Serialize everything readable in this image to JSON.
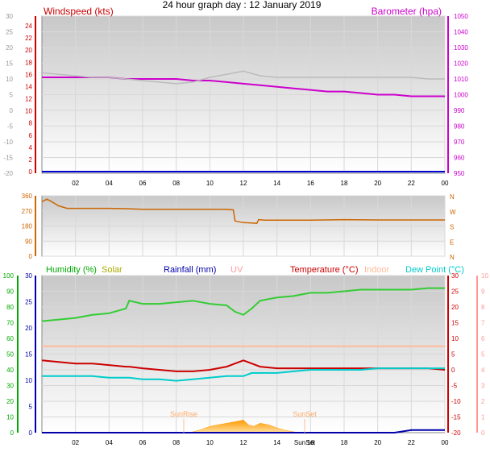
{
  "title": "24 hour graph day : 12 January 2019",
  "panels": {
    "top": {
      "left_label": "Windspeed (kts)",
      "right_label": "Barometer (hpa)",
      "left_inner_ticks": [
        "24",
        "22",
        "20",
        "18",
        "16",
        "14",
        "12",
        "10",
        "8",
        "6",
        "4",
        "2",
        "0"
      ],
      "left_outer_ticks": [
        "30",
        "25",
        "20",
        "15",
        "10",
        "5",
        "0",
        "-5",
        "-10",
        "-15",
        "-20"
      ],
      "right_ticks": [
        "1050",
        "1040",
        "1030",
        "1020",
        "1010",
        "1000",
        "990",
        "980",
        "970",
        "960",
        "950"
      ],
      "x_ticks": [
        "02",
        "04",
        "06",
        "08",
        "10",
        "12",
        "14",
        "16",
        "18",
        "20",
        "22",
        "00"
      ]
    },
    "middle": {
      "left_ticks": [
        "360",
        "270",
        "180",
        "90",
        "0"
      ],
      "right_ticks": [
        "N",
        "W",
        "S",
        "E",
        "N"
      ]
    },
    "bottom": {
      "header": {
        "humidity": "Humidity (%)",
        "solar": "Solar",
        "rainfall": "Rainfall (mm)",
        "uv": "UV",
        "temperature": "Temperature (°C)",
        "indoor": "Indoor",
        "dewpoint": "Dew Point (°C)"
      },
      "far_left_ticks": [
        "100",
        "90",
        "80",
        "70",
        "60",
        "50",
        "40",
        "30",
        "20",
        "10",
        "0"
      ],
      "inner_left_ticks": [
        "30",
        "25",
        "20",
        "15",
        "10",
        "5",
        "0"
      ],
      "inner_right_ticks": [
        "30",
        "25",
        "20",
        "15",
        "10",
        "5",
        "0",
        "-5",
        "-10",
        "-15",
        "-20"
      ],
      "far_right_ticks": [
        "10",
        "9",
        "8",
        "7",
        "6",
        "5",
        "4",
        "3",
        "2",
        "1",
        "0"
      ],
      "x_ticks": [
        "02",
        "04",
        "06",
        "08",
        "10",
        "12",
        "14",
        "16",
        "18",
        "20",
        "22",
        "00"
      ],
      "sunrise_label": "SunRise",
      "sunset_label": "SunSet",
      "sunset_axis_label": "SunSet"
    }
  },
  "colors": {
    "wind": "#cc0000",
    "barometer": "#cc00cc",
    "gust_line": "#bbbbbb",
    "direction": "#cc6600",
    "humidity": "#00aa00",
    "humidity_line": "#33cc33",
    "solar": "#aaaa00",
    "rainfall": "#0000aa",
    "uv": "#ff9999",
    "temperature": "#cc0000",
    "indoor": "#ffbb99",
    "dewpoint": "#00cccc"
  },
  "chart_data": [
    {
      "type": "line",
      "panel": "top",
      "x_hours_since_midnight_prior": [
        0,
        1,
        2,
        3,
        4,
        5,
        6,
        7,
        8,
        9,
        10,
        11,
        12,
        13,
        14,
        15,
        16,
        17,
        18,
        19,
        20,
        21,
        22,
        23,
        24
      ],
      "series": [
        {
          "name": "Barometer (hpa)",
          "axis": "right",
          "ylim": [
            950,
            1050
          ],
          "values": [
            1011,
            1011,
            1011,
            1011,
            1011,
            1010,
            1010,
            1010,
            1010,
            1009,
            1009,
            1008,
            1007,
            1006,
            1005,
            1004,
            1003,
            1002,
            1002,
            1001,
            1000,
            1000,
            999,
            999,
            999
          ]
        },
        {
          "name": "Windspeed (kts)",
          "axis": "left_outer",
          "ylim": [
            -20,
            30
          ],
          "values": [
            12,
            11.5,
            11,
            10.5,
            10.5,
            10,
            9.5,
            9,
            8.5,
            9,
            10.5,
            11.5,
            12.5,
            11,
            10.5,
            10.5,
            10.5,
            10.5,
            10.5,
            10.5,
            10.5,
            10.5,
            10.5,
            10,
            10
          ]
        },
        {
          "name": "Wind",
          "axis": "left_inner",
          "ylim": [
            0,
            24
          ],
          "values": [
            0,
            0,
            0,
            0,
            0,
            0,
            0,
            0,
            0,
            0,
            0,
            0,
            0,
            0,
            0,
            0,
            0,
            0,
            0,
            0,
            0,
            0,
            0,
            0,
            0
          ]
        }
      ]
    },
    {
      "type": "line",
      "panel": "middle",
      "x_hours_since_midnight_prior": [
        0,
        0.3,
        0.5,
        1,
        1.5,
        2,
        3,
        4,
        5,
        6,
        8,
        10,
        11,
        11.4,
        11.5,
        12,
        12.5,
        12.8,
        12.9,
        13.3,
        14,
        16,
        18,
        20,
        22,
        24
      ],
      "series": [
        {
          "name": "Wind direction",
          "ylim": [
            0,
            360
          ],
          "values": [
            325,
            340,
            330,
            300,
            285,
            285,
            285,
            285,
            283,
            280,
            280,
            280,
            280,
            276,
            210,
            200,
            198,
            196,
            218,
            215,
            215,
            215,
            218,
            216,
            216,
            216
          ]
        }
      ]
    },
    {
      "type": "line",
      "panel": "bottom",
      "x_hours_since_midnight_prior": [
        0,
        1,
        2,
        3,
        4,
        5,
        5.2,
        6,
        7,
        8,
        9,
        10,
        11,
        11.5,
        12,
        12.5,
        13,
        14,
        15,
        16,
        17,
        18,
        19,
        20,
        21,
        22,
        23,
        24
      ],
      "series": [
        {
          "name": "Humidity (%)",
          "axis": "far_left",
          "ylim": [
            0,
            100
          ],
          "values": [
            71,
            72,
            73,
            75,
            76,
            79,
            84,
            82,
            82,
            83,
            84,
            82,
            81,
            77,
            75,
            79,
            84,
            86,
            87,
            89,
            89,
            90,
            91,
            91,
            91,
            91,
            92,
            92
          ]
        },
        {
          "name": "Temperature (°C)",
          "axis": "inner_right",
          "ylim": [
            -20,
            30
          ],
          "values": [
            3,
            2.5,
            2,
            2,
            1.5,
            1,
            1,
            0.5,
            0,
            -0.5,
            -0.5,
            0,
            1,
            2,
            3,
            2,
            1,
            0.5,
            0.5,
            0.5,
            0.5,
            0.5,
            0.5,
            0.5,
            0.5,
            0.5,
            0.5,
            0
          ]
        },
        {
          "name": "Dew Point (°C)",
          "axis": "inner_right",
          "ylim": [
            -20,
            30
          ],
          "values": [
            -2,
            -2,
            -2,
            -2,
            -2.5,
            -2.5,
            -2.5,
            -3,
            -3,
            -3.5,
            -3,
            -2.5,
            -2,
            -2,
            -2,
            -1,
            -1,
            -1,
            -0.5,
            0,
            0,
            0,
            0,
            0.5,
            0.5,
            0.5,
            0.5,
            0.5
          ]
        },
        {
          "name": "Indoor",
          "axis": "inner_right",
          "ylim": [
            -20,
            30
          ],
          "values": [
            7.5,
            7.5,
            7.5,
            7.5,
            7.5,
            7.5,
            7.5,
            7.5,
            7.5,
            7.5,
            7.5,
            7.5,
            7.5,
            7.5,
            7.5,
            7.5,
            7.5,
            7.5,
            7.5,
            7.5,
            7.5,
            7.5,
            7.5,
            7.5,
            7.5,
            7.5,
            7.5,
            7.5
          ]
        },
        {
          "name": "Rainfall (mm)",
          "axis": "inner_left",
          "ylim": [
            0,
            30
          ],
          "values": [
            0,
            0,
            0,
            0,
            0,
            0,
            0,
            0,
            0,
            0,
            0,
            0,
            0,
            0,
            0,
            0,
            0,
            0,
            0,
            0,
            0,
            0,
            0,
            0,
            0,
            0.5,
            0.5,
            0.5
          ]
        }
      ]
    },
    {
      "type": "area",
      "panel": "bottom",
      "series": [
        {
          "name": "Solar",
          "axis": "far_left",
          "ylim": [
            0,
            100
          ],
          "x_hours_since_midnight_prior": [
            8.5,
            9,
            9.5,
            10,
            10.5,
            11,
            11.5,
            12,
            12.3,
            12.6,
            13,
            13.5,
            14,
            14.5,
            15,
            15.5,
            16
          ],
          "values": [
            0,
            0.5,
            2,
            4,
            5,
            6,
            7,
            8,
            5,
            4,
            6,
            5,
            3,
            1.5,
            0.5,
            0,
            0
          ]
        }
      ]
    }
  ]
}
